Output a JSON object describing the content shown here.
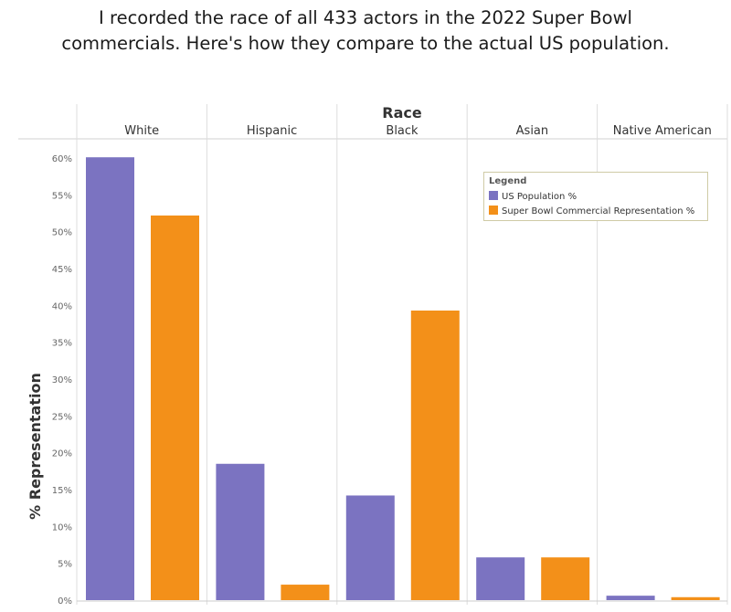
{
  "headline": {
    "line1": "I recorded the race of all 433 actors in the 2022 Super Bowl",
    "line2": "commercials. Here's how they compare to the actual US population."
  },
  "chart_data": {
    "type": "bar",
    "title": "Race",
    "xlabel": "Race",
    "ylabel": "% Representation",
    "categories": [
      "White",
      "Hispanic",
      "Black",
      "Asian",
      "Native American"
    ],
    "series": [
      {
        "name": "US Population %",
        "color": "#7b73c1",
        "values": [
          60.1,
          18.5,
          14.2,
          5.8,
          0.6
        ]
      },
      {
        "name": "Super Bowl Commercial Representation %",
        "color": "#f39019",
        "values": [
          52.2,
          2.1,
          39.3,
          5.8,
          0.4
        ]
      }
    ],
    "ylim": [
      0,
      60
    ],
    "yticks": [
      "0%",
      "5%",
      "10%",
      "15%",
      "20%",
      "25%",
      "30%",
      "35%",
      "40%",
      "45%",
      "50%",
      "55%",
      "60%"
    ],
    "legend_title": "Legend",
    "legend_position": "top-right",
    "grid": false
  }
}
